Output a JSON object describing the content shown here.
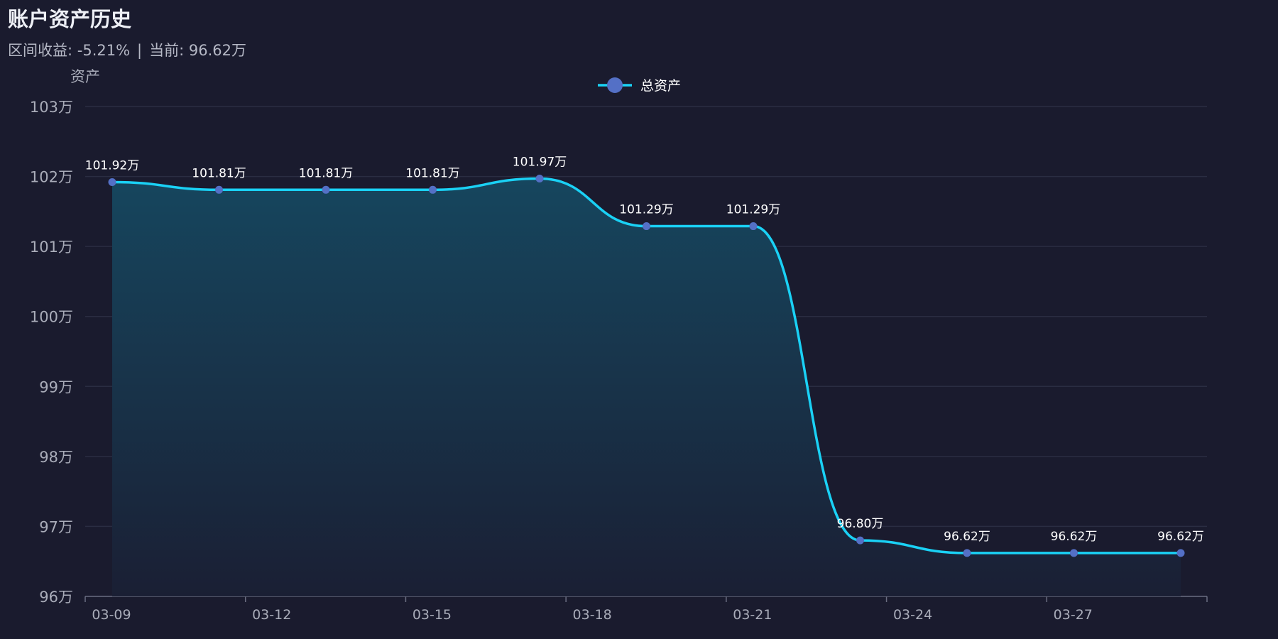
{
  "header": {
    "title": "账户资产历史",
    "return_label": "区间收益: -5.21%",
    "separator": "|",
    "current_label": "当前: 96.62万"
  },
  "colors": {
    "background": "#1a1b2e",
    "line": "#1ad1f5",
    "point": "#5470c6",
    "grid": "#2a2d42",
    "area_top": "#16465e",
    "area_bottom": "#1a1f34"
  },
  "chart_data": {
    "type": "line",
    "smooth": true,
    "area": true,
    "ylabel": "资产",
    "ylim": [
      96,
      103
    ],
    "y_ticks": [
      96,
      97,
      98,
      99,
      100,
      101,
      102,
      103
    ],
    "y_unit": "万",
    "y_tick_labels": [
      "96万",
      "97万",
      "98万",
      "99万",
      "100万",
      "101万",
      "102万",
      "103万"
    ],
    "x_tick_labels": [
      "03-09",
      "03-12",
      "03-15",
      "03-18",
      "03-21",
      "03-24",
      "03-27"
    ],
    "legend": {
      "position": "top-center",
      "entries": [
        "总资产"
      ]
    },
    "grid": "horizontal",
    "series": [
      {
        "name": "总资产",
        "x": [
          "03-09",
          "03-11",
          "03-13",
          "03-15",
          "03-17",
          "03-19",
          "03-21",
          "03-23",
          "03-25",
          "03-27",
          "03-29"
        ],
        "values": [
          101.92,
          101.81,
          101.81,
          101.81,
          101.97,
          101.29,
          101.29,
          96.8,
          96.62,
          96.62,
          96.62
        ],
        "labels": [
          "101.92万",
          "101.81万",
          "101.81万",
          "101.81万",
          "101.97万",
          "101.29万",
          "101.29万",
          "96.80万",
          "96.62万",
          "96.62万",
          "96.62万"
        ]
      }
    ]
  }
}
